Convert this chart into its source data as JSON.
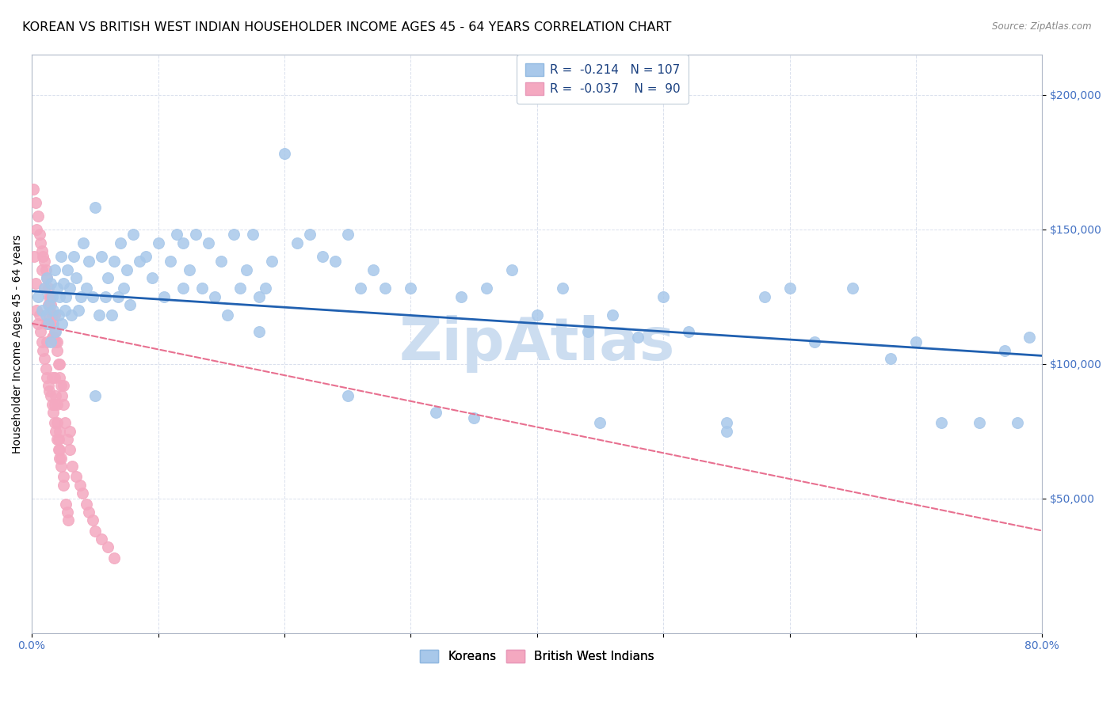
{
  "title": "KOREAN VS BRITISH WEST INDIAN HOUSEHOLDER INCOME AGES 45 - 64 YEARS CORRELATION CHART",
  "source": "Source: ZipAtlas.com",
  "ylabel": "Householder Income Ages 45 - 64 years",
  "ytick_labels": [
    "$50,000",
    "$100,000",
    "$150,000",
    "$200,000"
  ],
  "ytick_values": [
    50000,
    100000,
    150000,
    200000
  ],
  "ylim": [
    0,
    215000
  ],
  "xlim": [
    0.0,
    0.8
  ],
  "legend_korean_R": "-0.214",
  "legend_korean_N": "107",
  "legend_bwi_R": "-0.037",
  "legend_bwi_N": "90",
  "korean_color": "#a8c8ea",
  "bwi_color": "#f4a8c0",
  "trend_korean_color": "#2060b0",
  "trend_bwi_color": "#e87090",
  "watermark": "ZipAtlas",
  "watermark_color": "#ccddf0",
  "korean_scatter_x": [
    0.005,
    0.008,
    0.01,
    0.011,
    0.012,
    0.013,
    0.014,
    0.015,
    0.015,
    0.016,
    0.017,
    0.018,
    0.019,
    0.02,
    0.021,
    0.022,
    0.023,
    0.024,
    0.025,
    0.026,
    0.027,
    0.028,
    0.03,
    0.031,
    0.033,
    0.035,
    0.037,
    0.039,
    0.041,
    0.043,
    0.045,
    0.048,
    0.05,
    0.053,
    0.055,
    0.058,
    0.06,
    0.063,
    0.065,
    0.068,
    0.07,
    0.073,
    0.075,
    0.078,
    0.08,
    0.085,
    0.09,
    0.095,
    0.1,
    0.105,
    0.11,
    0.115,
    0.12,
    0.125,
    0.13,
    0.135,
    0.14,
    0.145,
    0.15,
    0.155,
    0.16,
    0.165,
    0.17,
    0.175,
    0.18,
    0.185,
    0.19,
    0.2,
    0.21,
    0.22,
    0.23,
    0.24,
    0.25,
    0.26,
    0.27,
    0.28,
    0.3,
    0.32,
    0.34,
    0.36,
    0.38,
    0.4,
    0.42,
    0.44,
    0.46,
    0.48,
    0.5,
    0.52,
    0.55,
    0.58,
    0.6,
    0.62,
    0.65,
    0.68,
    0.7,
    0.72,
    0.75,
    0.77,
    0.78,
    0.79,
    0.05,
    0.12,
    0.18,
    0.25,
    0.35,
    0.45,
    0.55
  ],
  "korean_scatter_y": [
    125000,
    120000,
    128000,
    118000,
    132000,
    115000,
    122000,
    130000,
    108000,
    125000,
    120000,
    135000,
    112000,
    128000,
    118000,
    125000,
    140000,
    115000,
    130000,
    120000,
    125000,
    135000,
    128000,
    118000,
    140000,
    132000,
    120000,
    125000,
    145000,
    128000,
    138000,
    125000,
    158000,
    118000,
    140000,
    125000,
    132000,
    118000,
    138000,
    125000,
    145000,
    128000,
    135000,
    122000,
    148000,
    138000,
    140000,
    132000,
    145000,
    125000,
    138000,
    148000,
    128000,
    135000,
    148000,
    128000,
    145000,
    125000,
    138000,
    118000,
    148000,
    128000,
    135000,
    148000,
    125000,
    128000,
    138000,
    178000,
    145000,
    148000,
    140000,
    138000,
    148000,
    128000,
    135000,
    128000,
    128000,
    82000,
    125000,
    128000,
    135000,
    118000,
    128000,
    112000,
    118000,
    110000,
    125000,
    112000,
    78000,
    125000,
    128000,
    108000,
    128000,
    102000,
    108000,
    78000,
    78000,
    105000,
    78000,
    110000,
    88000,
    145000,
    112000,
    88000,
    80000,
    78000,
    75000
  ],
  "bwi_scatter_x": [
    0.001,
    0.002,
    0.003,
    0.003,
    0.004,
    0.004,
    0.005,
    0.005,
    0.006,
    0.006,
    0.007,
    0.007,
    0.008,
    0.008,
    0.009,
    0.009,
    0.01,
    0.01,
    0.011,
    0.011,
    0.012,
    0.012,
    0.013,
    0.013,
    0.014,
    0.014,
    0.015,
    0.015,
    0.016,
    0.016,
    0.017,
    0.017,
    0.018,
    0.018,
    0.019,
    0.019,
    0.02,
    0.02,
    0.021,
    0.021,
    0.022,
    0.022,
    0.023,
    0.023,
    0.024,
    0.025,
    0.026,
    0.028,
    0.03,
    0.032,
    0.035,
    0.038,
    0.04,
    0.043,
    0.045,
    0.048,
    0.05,
    0.055,
    0.06,
    0.065,
    0.02,
    0.025,
    0.03,
    0.018,
    0.015,
    0.012,
    0.01,
    0.008,
    0.022,
    0.016,
    0.014,
    0.012,
    0.018,
    0.02,
    0.016,
    0.019,
    0.021,
    0.023,
    0.025,
    0.027,
    0.029,
    0.022,
    0.017,
    0.013,
    0.015,
    0.018,
    0.02,
    0.022,
    0.025,
    0.028
  ],
  "bwi_scatter_y": [
    165000,
    140000,
    130000,
    160000,
    150000,
    120000,
    155000,
    115000,
    148000,
    118000,
    145000,
    112000,
    142000,
    108000,
    140000,
    105000,
    138000,
    102000,
    135000,
    98000,
    132000,
    95000,
    128000,
    92000,
    125000,
    90000,
    122000,
    88000,
    118000,
    85000,
    115000,
    82000,
    112000,
    78000,
    108000,
    75000,
    105000,
    72000,
    100000,
    68000,
    95000,
    65000,
    92000,
    62000,
    88000,
    85000,
    78000,
    72000,
    68000,
    62000,
    58000,
    55000,
    52000,
    48000,
    45000,
    42000,
    38000,
    35000,
    32000,
    28000,
    108000,
    92000,
    75000,
    118000,
    125000,
    115000,
    128000,
    135000,
    100000,
    110000,
    118000,
    108000,
    85000,
    78000,
    95000,
    88000,
    72000,
    65000,
    55000,
    48000,
    42000,
    68000,
    110000,
    122000,
    115000,
    95000,
    85000,
    75000,
    58000,
    45000
  ],
  "background_color": "#ffffff",
  "grid_color": "#d0d8e8",
  "title_fontsize": 11.5,
  "axis_label_fontsize": 10,
  "tick_label_fontsize": 10,
  "legend_fontsize": 11,
  "korean_trend_x0": 0.0,
  "korean_trend_y0": 127000,
  "korean_trend_x1": 0.8,
  "korean_trend_y1": 103000,
  "bwi_trend_x0": 0.0,
  "bwi_trend_y0": 115000,
  "bwi_trend_x1": 0.8,
  "bwi_trend_y1": 38000
}
